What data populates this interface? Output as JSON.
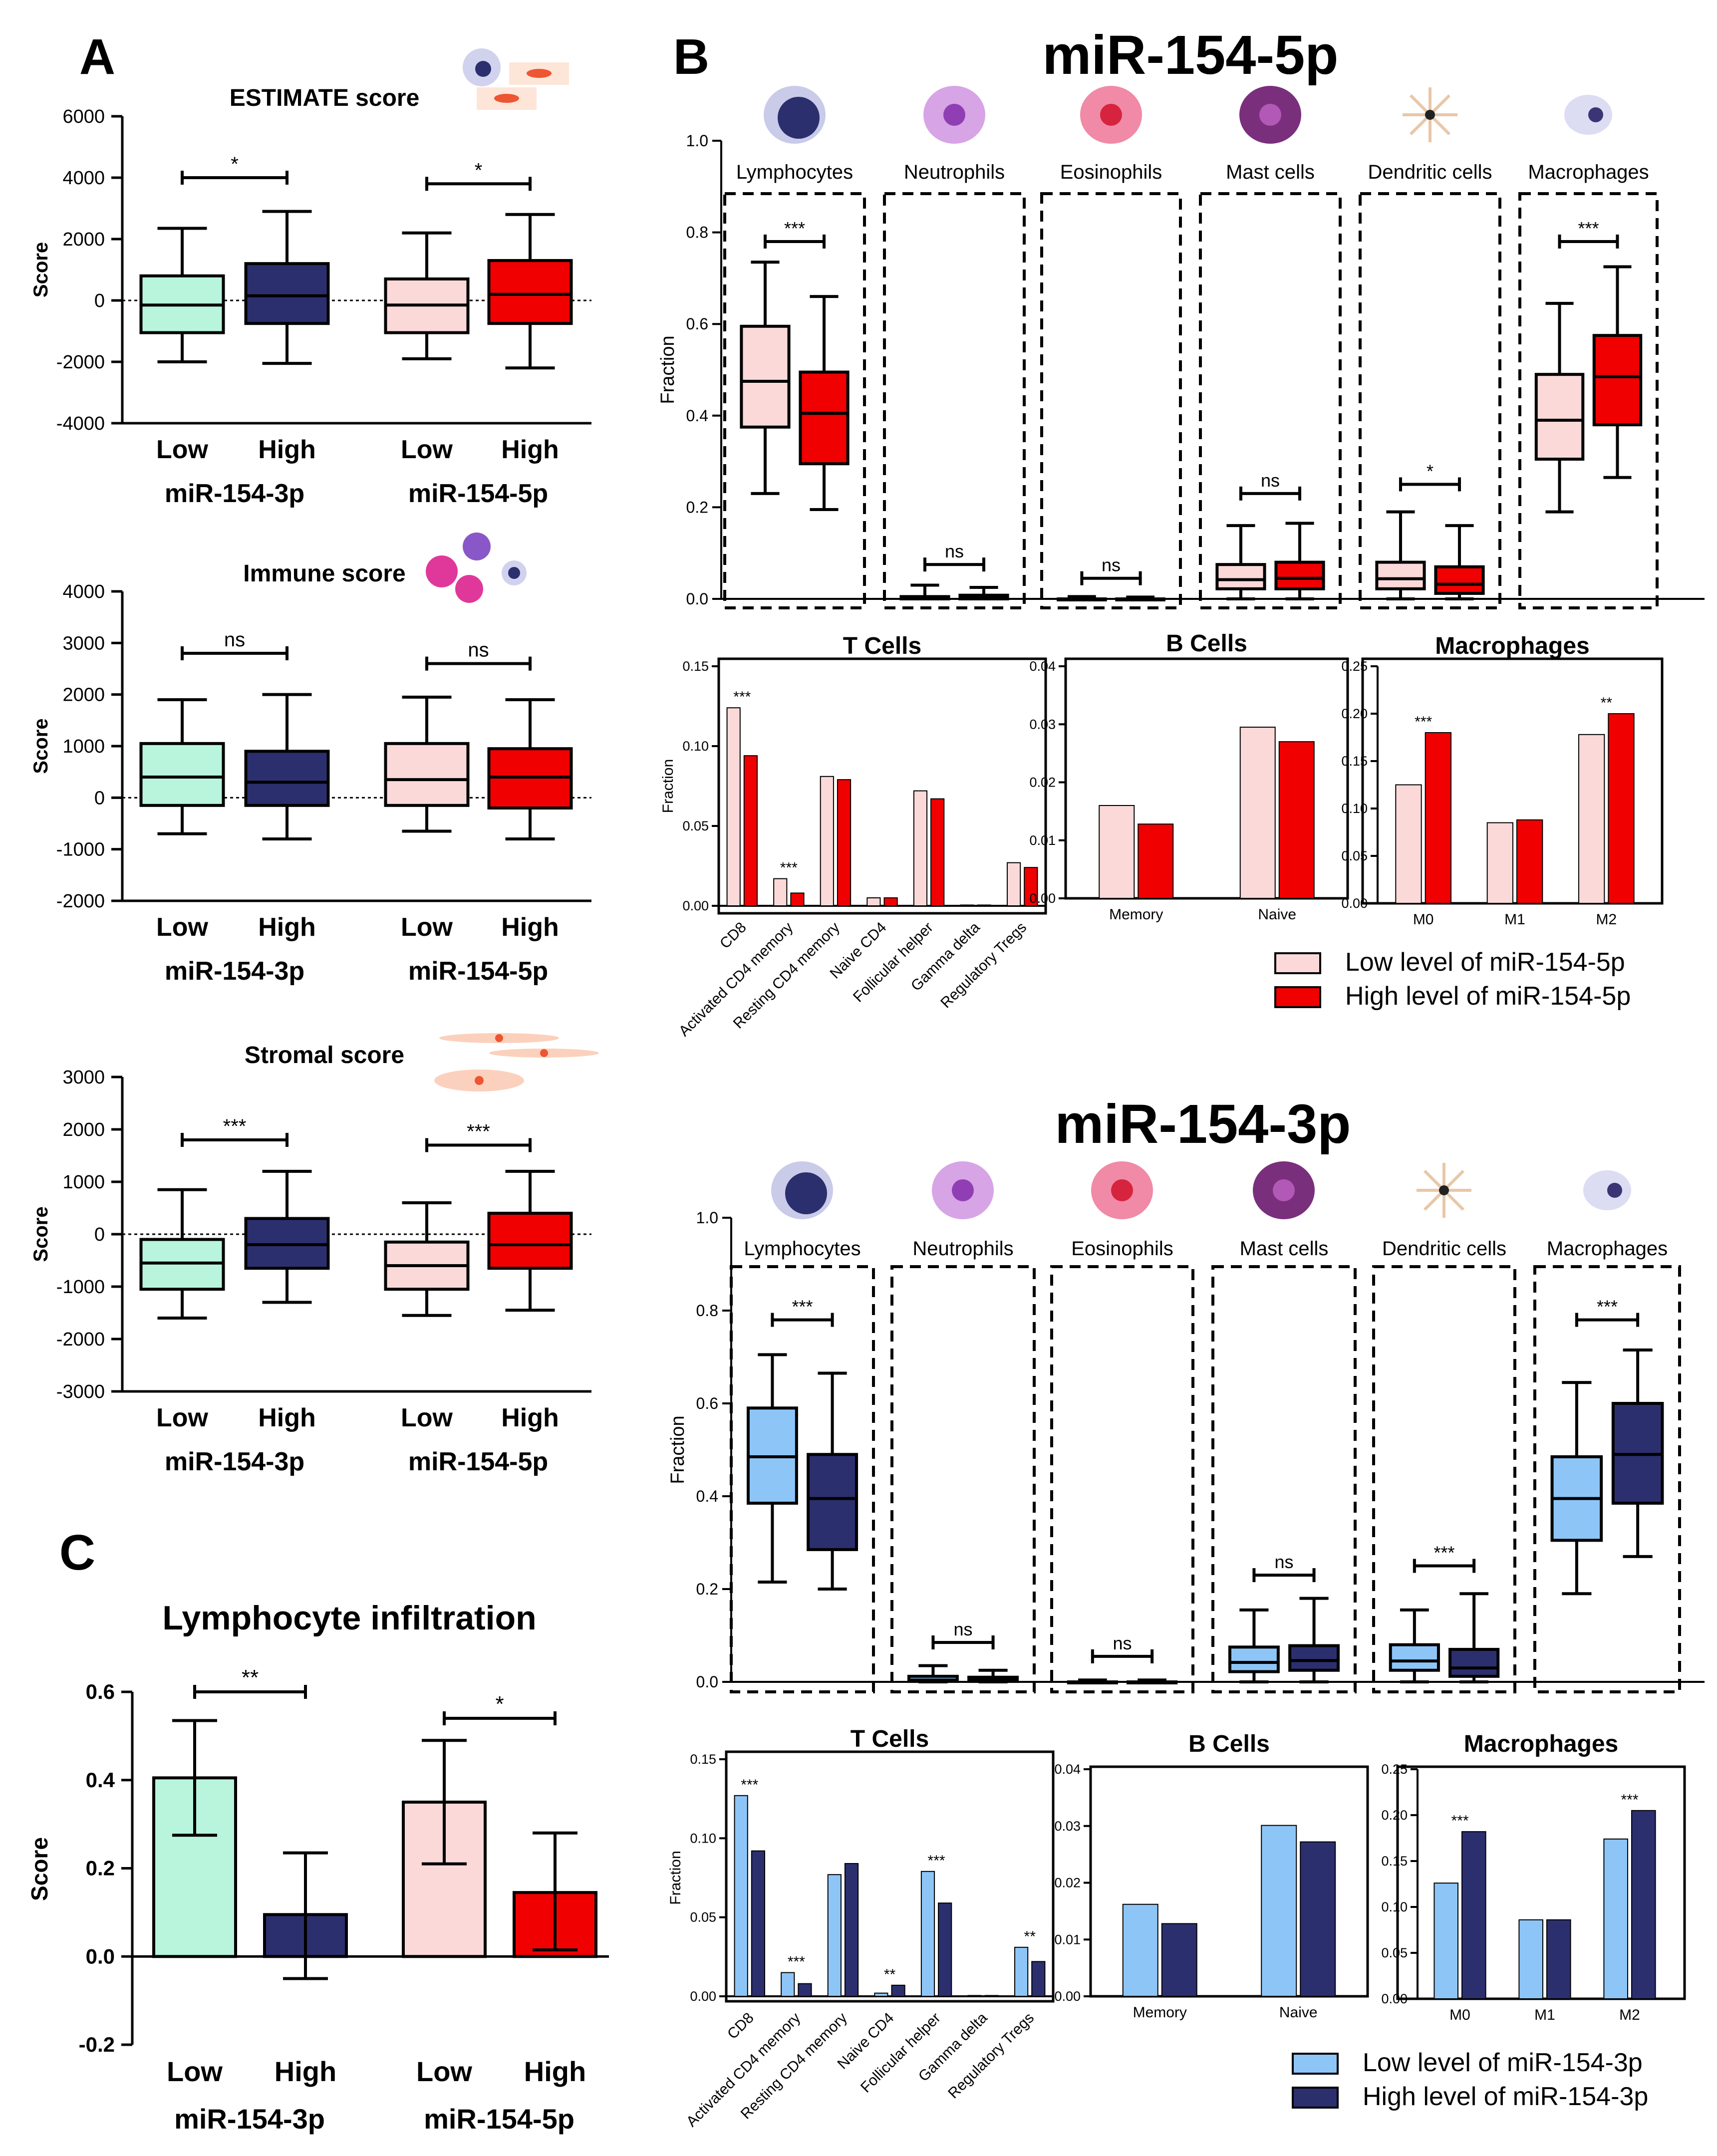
{
  "colors": {
    "teal": "#b8f5dc",
    "navy": "#2c2f6e",
    "pink": "#fbd9d9",
    "red": "#f00000",
    "lblue": "#8ec5f7"
  },
  "panel_labels": {
    "a": "A",
    "b": "B",
    "c": "C"
  },
  "icons": [
    "immune-cells-icon",
    "lymphocyte-icon",
    "neutrophil-icon",
    "eosinophil-icon",
    "mast-cell-icon",
    "dendritic-cell-icon",
    "macrophage-icon",
    "stromal-cells-icon"
  ],
  "chart_data": [
    {
      "id": "estimate",
      "type": "box",
      "title": "ESTIMATE score",
      "ylabel": "Score",
      "ylim": [
        -4000,
        6000
      ],
      "ticks": [
        6000,
        4000,
        2000,
        0,
        -2000,
        -4000
      ],
      "categories": [
        "Low",
        "High",
        "Low",
        "High"
      ],
      "groups": [
        "miR-154-3p",
        "miR-154-5p"
      ],
      "boxes": [
        {
          "min": -2000,
          "q1": -1050,
          "median": -150,
          "q3": 800,
          "max": 2350
        },
        {
          "min": -2050,
          "q1": -750,
          "median": 150,
          "q3": 1200,
          "max": 2900
        },
        {
          "min": -1900,
          "q1": -1050,
          "median": -150,
          "q3": 700,
          "max": 2200
        },
        {
          "min": -2200,
          "q1": -750,
          "median": 200,
          "q3": 1300,
          "max": 2800
        }
      ],
      "sig": [
        {
          "label": "*",
          "y": 4000
        },
        {
          "label": "*",
          "y": 3800
        }
      ]
    },
    {
      "id": "immune",
      "type": "box",
      "title": "Immune score",
      "ylabel": "Score",
      "ylim": [
        -2000,
        4000
      ],
      "ticks": [
        4000,
        3000,
        2000,
        1000,
        0,
        -1000,
        -2000
      ],
      "categories": [
        "Low",
        "High",
        "Low",
        "High"
      ],
      "groups": [
        "miR-154-3p",
        "miR-154-5p"
      ],
      "boxes": [
        {
          "min": -700,
          "q1": -150,
          "median": 400,
          "q3": 1050,
          "max": 1900
        },
        {
          "min": -800,
          "q1": -150,
          "median": 300,
          "q3": 900,
          "max": 2000
        },
        {
          "min": -650,
          "q1": -150,
          "median": 350,
          "q3": 1050,
          "max": 1950
        },
        {
          "min": -800,
          "q1": -200,
          "median": 400,
          "q3": 950,
          "max": 1900
        }
      ],
      "sig": [
        {
          "label": "ns",
          "y": 2800
        },
        {
          "label": "ns",
          "y": 2600
        }
      ]
    },
    {
      "id": "stromal",
      "type": "box",
      "title": "Stromal score",
      "ylabel": "Score",
      "ylim": [
        -3000,
        3000
      ],
      "ticks": [
        3000,
        2000,
        1000,
        0,
        -1000,
        -2000,
        -3000
      ],
      "categories": [
        "Low",
        "High",
        "Low",
        "High"
      ],
      "groups": [
        "miR-154-3p",
        "miR-154-5p"
      ],
      "boxes": [
        {
          "min": -1600,
          "q1": -1050,
          "median": -550,
          "q3": -100,
          "max": 850
        },
        {
          "min": -1300,
          "q1": -650,
          "median": -200,
          "q3": 300,
          "max": 1200
        },
        {
          "min": -1550,
          "q1": -1050,
          "median": -600,
          "q3": -150,
          "max": 600
        },
        {
          "min": -1450,
          "q1": -650,
          "median": -200,
          "q3": 400,
          "max": 1200
        }
      ],
      "sig": [
        {
          "label": "***",
          "y": 1800
        },
        {
          "label": "***",
          "y": 1700
        }
      ]
    },
    {
      "id": "lymph",
      "type": "bar",
      "title": "Lymphocyte infiltration",
      "ylabel": "Score",
      "ylim": [
        -0.2,
        0.6
      ],
      "ticks": [
        "0.6",
        "0.4",
        "0.2",
        "0.0",
        "-0.2"
      ],
      "categories": [
        "Low",
        "High",
        "Low",
        "High"
      ],
      "groups": [
        "miR-154-3p",
        "miR-154-5p"
      ],
      "values": [
        0.405,
        0.095,
        0.35,
        0.145
      ],
      "err_low": [
        0.275,
        -0.05,
        0.21,
        0.015
      ],
      "err_high": [
        0.535,
        0.235,
        0.49,
        0.28
      ],
      "sig": [
        {
          "label": "**",
          "y": 0.6
        },
        {
          "label": "*",
          "y": 0.54
        }
      ]
    },
    {
      "id": "mir5p_boxes",
      "type": "box",
      "title": "miR-154-5p",
      "ylabel": "Fraction",
      "ylim": [
        0,
        1
      ],
      "ticks": [
        "1.0",
        "0.8",
        "0.6",
        "0.4",
        "0.2",
        "0.0"
      ],
      "categories": [
        "Lymphocytes",
        "Neutrophils",
        "Eosinophils",
        "Mast cells",
        "Dendritic cells",
        "Macrophages"
      ],
      "low": [
        {
          "min": 0.23,
          "q1": 0.375,
          "median": 0.475,
          "q3": 0.595,
          "max": 0.735
        },
        {
          "min": 0,
          "q1": 0,
          "median": 0.002,
          "q3": 0.005,
          "max": 0.03
        },
        {
          "min": 0,
          "q1": 0,
          "median": 0,
          "q3": 0,
          "max": 0.005
        },
        {
          "min": 0,
          "q1": 0.022,
          "median": 0.042,
          "q3": 0.075,
          "max": 0.16
        },
        {
          "min": 0,
          "q1": 0.022,
          "median": 0.044,
          "q3": 0.08,
          "max": 0.19
        },
        {
          "min": 0.19,
          "q1": 0.305,
          "median": 0.39,
          "q3": 0.49,
          "max": 0.645
        }
      ],
      "high": [
        {
          "min": 0.195,
          "q1": 0.295,
          "median": 0.405,
          "q3": 0.495,
          "max": 0.66
        },
        {
          "min": 0,
          "q1": 0,
          "median": 0.003,
          "q3": 0.008,
          "max": 0.025
        },
        {
          "min": 0,
          "q1": 0,
          "median": 0,
          "q3": 0,
          "max": 0.004
        },
        {
          "min": 0,
          "q1": 0.022,
          "median": 0.045,
          "q3": 0.08,
          "max": 0.165
        },
        {
          "min": 0,
          "q1": 0.012,
          "median": 0.032,
          "q3": 0.07,
          "max": 0.16
        },
        {
          "min": 0.265,
          "q1": 0.38,
          "median": 0.485,
          "q3": 0.575,
          "max": 0.725
        }
      ],
      "sig": [
        "***",
        "ns",
        "ns",
        "ns",
        "*",
        "***"
      ],
      "sig_y": [
        0.78,
        0.075,
        0.045,
        0.23,
        0.25,
        0.78
      ]
    },
    {
      "id": "mir5p_tcells",
      "type": "bar",
      "title": "T Cells",
      "ylabel": "Fraction",
      "ylim": [
        0,
        0.15
      ],
      "ticks": [
        "0.15",
        "0.10",
        "0.05",
        "0.00"
      ],
      "categories": [
        "CD8",
        "Activated CD4 memory",
        "Resting CD4 memory",
        "Naive CD4",
        "Follicular helper",
        "Gamma delta",
        "Regulatory Tregs"
      ],
      "series": [
        {
          "name": "Low",
          "values": [
            0.124,
            0.017,
            0.081,
            0.005,
            0.072,
            0.0005,
            0.027
          ]
        },
        {
          "name": "High",
          "values": [
            0.094,
            0.008,
            0.079,
            0.005,
            0.067,
            0.0005,
            0.024
          ]
        }
      ],
      "annotations": [
        {
          "category": 0,
          "text": "***"
        },
        {
          "category": 1,
          "text": "***"
        }
      ]
    },
    {
      "id": "mir5p_bcells",
      "type": "bar",
      "title": "B Cells",
      "ylim": [
        0,
        0.04
      ],
      "ticks": [
        "0.04",
        "0.03",
        "0.02",
        "0.01",
        "0.00"
      ],
      "categories": [
        "Memory",
        "Naive"
      ],
      "series": [
        {
          "name": "Low",
          "values": [
            0.016,
            0.0295
          ]
        },
        {
          "name": "High",
          "values": [
            0.0128,
            0.027
          ]
        }
      ],
      "annotations": []
    },
    {
      "id": "mir5p_macro",
      "type": "bar",
      "title": "Macrophages",
      "ylim": [
        0,
        0.25
      ],
      "ticks": [
        "0.25",
        "0.20",
        "0.15",
        "0.10",
        "0.05",
        "0.00"
      ],
      "categories": [
        "M0",
        "M1",
        "M2"
      ],
      "series": [
        {
          "name": "Low",
          "values": [
            0.125,
            0.085,
            0.178
          ]
        },
        {
          "name": "High",
          "values": [
            0.18,
            0.088,
            0.2
          ]
        }
      ],
      "annotations": [
        {
          "category": 0,
          "text": "***"
        },
        {
          "category": 2,
          "text": "**"
        }
      ]
    },
    {
      "id": "mir5p_legend",
      "type": "legend",
      "entries": [
        "Low level of miR-154-5p",
        "High level of miR-154-5p"
      ]
    },
    {
      "id": "mir3p_boxes",
      "type": "box",
      "title": "miR-154-3p",
      "ylabel": "Fraction",
      "ylim": [
        0,
        1
      ],
      "ticks": [
        "1.0",
        "0.8",
        "0.6",
        "0.4",
        "0.2",
        "0.0"
      ],
      "categories": [
        "Lymphocytes",
        "Neutrophils",
        "Eosinophils",
        "Mast cells",
        "Dendritic cells",
        "Macrophages"
      ],
      "low": [
        {
          "min": 0.215,
          "q1": 0.385,
          "median": 0.485,
          "q3": 0.59,
          "max": 0.705
        },
        {
          "min": 0,
          "q1": 0.001,
          "median": 0.004,
          "q3": 0.012,
          "max": 0.035
        },
        {
          "min": 0,
          "q1": 0,
          "median": 0,
          "q3": 0,
          "max": 0.004
        },
        {
          "min": 0,
          "q1": 0.022,
          "median": 0.042,
          "q3": 0.075,
          "max": 0.155
        },
        {
          "min": 0,
          "q1": 0.025,
          "median": 0.045,
          "q3": 0.08,
          "max": 0.155
        },
        {
          "min": 0.19,
          "q1": 0.305,
          "median": 0.395,
          "q3": 0.485,
          "max": 0.645
        }
      ],
      "high": [
        {
          "min": 0.2,
          "q1": 0.285,
          "median": 0.395,
          "q3": 0.49,
          "max": 0.665
        },
        {
          "min": 0,
          "q1": 0.001,
          "median": 0.004,
          "q3": 0.01,
          "max": 0.025
        },
        {
          "min": 0,
          "q1": 0,
          "median": 0,
          "q3": 0,
          "max": 0.004
        },
        {
          "min": 0,
          "q1": 0.025,
          "median": 0.046,
          "q3": 0.078,
          "max": 0.18
        },
        {
          "min": 0,
          "q1": 0.012,
          "median": 0.03,
          "q3": 0.07,
          "max": 0.19
        },
        {
          "min": 0.27,
          "q1": 0.385,
          "median": 0.49,
          "q3": 0.6,
          "max": 0.715
        }
      ],
      "sig": [
        "***",
        "ns",
        "ns",
        "ns",
        "***",
        "***"
      ],
      "sig_y": [
        0.78,
        0.085,
        0.055,
        0.23,
        0.25,
        0.78
      ]
    },
    {
      "id": "mir3p_tcells",
      "type": "bar",
      "title": "T Cells",
      "ylabel": "Fraction",
      "ylim": [
        0,
        0.15
      ],
      "ticks": [
        "0.15",
        "0.10",
        "0.05",
        "0.00"
      ],
      "categories": [
        "CD8",
        "Activated CD4 memory",
        "Resting CD4 memory",
        "Naive CD4",
        "Follicular helper",
        "Gamma delta",
        "Regulatory Tregs"
      ],
      "series": [
        {
          "name": "Low",
          "values": [
            0.127,
            0.015,
            0.077,
            0.002,
            0.079,
            0.0005,
            0.031
          ]
        },
        {
          "name": "High",
          "values": [
            0.092,
            0.008,
            0.084,
            0.007,
            0.059,
            0.0005,
            0.022
          ]
        }
      ],
      "annotations": [
        {
          "category": 0,
          "text": "***"
        },
        {
          "category": 1,
          "text": "***"
        },
        {
          "category": 3,
          "text": "**"
        },
        {
          "category": 4,
          "text": "***"
        },
        {
          "category": 6,
          "text": "**"
        }
      ]
    },
    {
      "id": "mir3p_bcells",
      "type": "bar",
      "title": "B Cells",
      "ylim": [
        0,
        0.04
      ],
      "ticks": [
        "0.04",
        "0.03",
        "0.02",
        "0.01",
        "0.00"
      ],
      "categories": [
        "Memory",
        "Naive"
      ],
      "series": [
        {
          "name": "Low",
          "values": [
            0.0162,
            0.0301
          ]
        },
        {
          "name": "High",
          "values": [
            0.0128,
            0.0272
          ]
        }
      ],
      "annotations": []
    },
    {
      "id": "mir3p_macro",
      "type": "bar",
      "title": "Macrophages",
      "ylim": [
        0,
        0.25
      ],
      "ticks": [
        "0.25",
        "0.20",
        "0.15",
        "0.10",
        "0.05",
        "0.00"
      ],
      "categories": [
        "M0",
        "M1",
        "M2"
      ],
      "series": [
        {
          "name": "Low",
          "values": [
            0.126,
            0.086,
            0.174
          ]
        },
        {
          "name": "High",
          "values": [
            0.182,
            0.086,
            0.205
          ]
        }
      ],
      "annotations": [
        {
          "category": 0,
          "text": "***"
        },
        {
          "category": 2,
          "text": "***"
        }
      ]
    },
    {
      "id": "mir3p_legend",
      "type": "legend",
      "entries": [
        "Low level of miR-154-3p",
        "High level of miR-154-3p"
      ]
    }
  ]
}
